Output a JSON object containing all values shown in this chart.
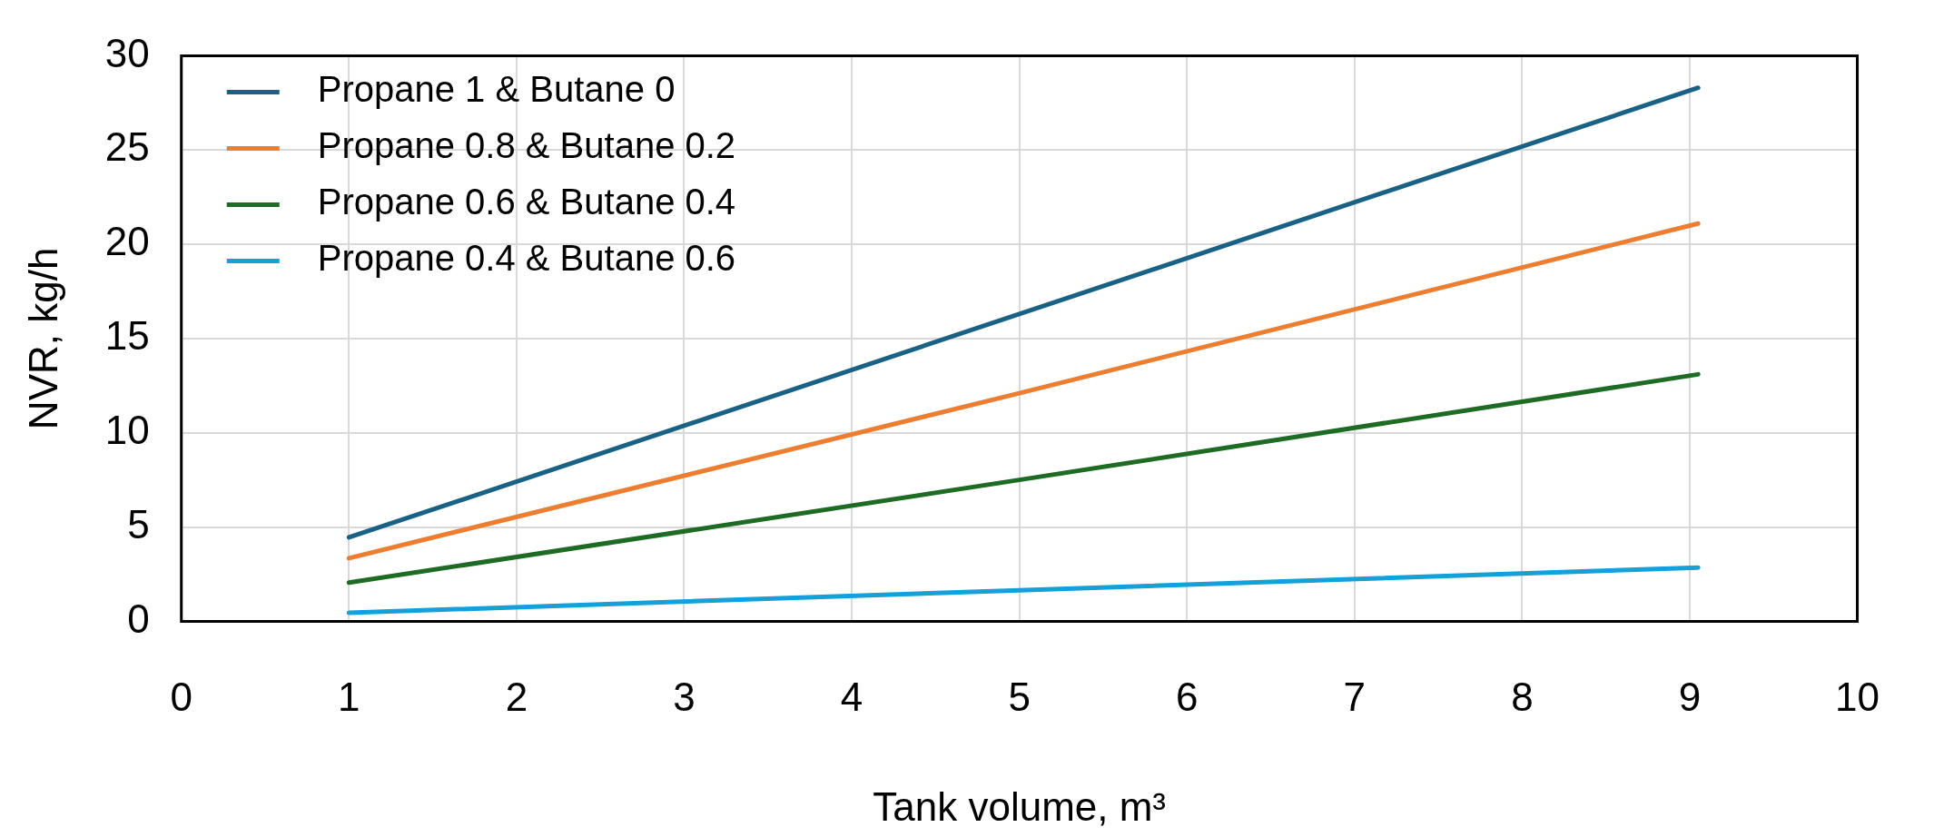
{
  "chart_data": {
    "type": "line",
    "xlabel": "Tank volume, m³",
    "ylabel": "NVR, kg/h",
    "xlim": [
      0,
      10
    ],
    "xticks": [
      0,
      1,
      2,
      3,
      4,
      5,
      6,
      7,
      8,
      9,
      10
    ],
    "ylim": [
      0,
      30
    ],
    "yticks": [
      0,
      5,
      10,
      15,
      20,
      25,
      30
    ],
    "grid": true,
    "legend": "top left",
    "marker": "none",
    "line_style": "solid",
    "x": [
      1,
      5,
      9.05
    ],
    "series": [
      {
        "name": "Propane 1 & Butane 0",
        "color": "#1a6285",
        "values": [
          4.45,
          16.3,
          28.3
        ]
      },
      {
        "name": "Propane 0.8 & Butane 0.2",
        "color": "#ed7d31",
        "values": [
          3.35,
          12.1,
          21.1
        ]
      },
      {
        "name": "Propane 0.6 & Butane 0.4",
        "color": "#1e6b24",
        "values": [
          2.05,
          7.5,
          13.1
        ]
      },
      {
        "name": "Propane 0.4 & Butane 0.6",
        "color": "#14a0d8",
        "values": [
          0.45,
          1.65,
          2.85
        ]
      }
    ]
  }
}
